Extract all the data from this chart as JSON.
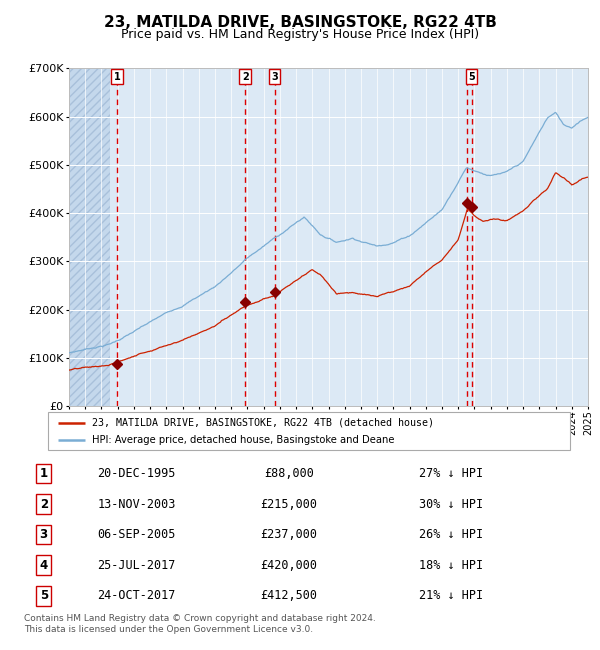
{
  "title": "23, MATILDA DRIVE, BASINGSTOKE, RG22 4TB",
  "subtitle": "Price paid vs. HM Land Registry's House Price Index (HPI)",
  "title_fontsize": 11,
  "subtitle_fontsize": 9,
  "background_color": "#ffffff",
  "plot_bg_color": "#dce9f5",
  "grid_color": "#ffffff",
  "ylim": [
    0,
    700000
  ],
  "yticks": [
    0,
    100000,
    200000,
    300000,
    400000,
    500000,
    600000,
    700000
  ],
  "ytick_labels": [
    "£0",
    "£100K",
    "£200K",
    "£300K",
    "£400K",
    "£500K",
    "£600K",
    "£700K"
  ],
  "x_start_year": 1993,
  "x_end_year": 2025,
  "hpi_color": "#7aadd4",
  "price_color": "#cc2200",
  "marker_color": "#880000",
  "vline_color": "#dd0000",
  "sale_box_color": "#cc0000",
  "legend_label_hpi": "HPI: Average price, detached house, Basingstoke and Deane",
  "legend_label_price": "23, MATILDA DRIVE, BASINGSTOKE, RG22 4TB (detached house)",
  "footer_text": "Contains HM Land Registry data © Crown copyright and database right 2024.\nThis data is licensed under the Open Government Licence v3.0.",
  "sales": [
    {
      "label": "1",
      "year": 1995.97,
      "price": 88000,
      "date_str": "20-DEC-1995"
    },
    {
      "label": "2",
      "year": 2003.87,
      "price": 215000,
      "date_str": "13-NOV-2003"
    },
    {
      "label": "3",
      "year": 2005.68,
      "price": 237000,
      "date_str": "06-SEP-2005"
    },
    {
      "label": "4",
      "year": 2017.56,
      "price": 420000,
      "date_str": "25-JUL-2017"
    },
    {
      "label": "5",
      "year": 2017.82,
      "price": 412500,
      "date_str": "24-OCT-2017"
    }
  ],
  "table_rows": [
    {
      "num": "1",
      "date": "20-DEC-1995",
      "price": "£88,000",
      "hpi": "27% ↓ HPI"
    },
    {
      "num": "2",
      "date": "13-NOV-2003",
      "price": "£215,000",
      "hpi": "30% ↓ HPI"
    },
    {
      "num": "3",
      "date": "06-SEP-2005",
      "price": "£237,000",
      "hpi": "26% ↓ HPI"
    },
    {
      "num": "4",
      "date": "25-JUL-2017",
      "price": "£420,000",
      "hpi": "18% ↓ HPI"
    },
    {
      "num": "5",
      "date": "24-OCT-2017",
      "price": "£412,500",
      "hpi": "21% ↓ HPI"
    }
  ],
  "hpi_curve_segments": [
    [
      1993.0,
      110000
    ],
    [
      1995.5,
      130000
    ],
    [
      1996.0,
      138000
    ],
    [
      2000.0,
      210000
    ],
    [
      2002.0,
      250000
    ],
    [
      2004.0,
      310000
    ],
    [
      2007.5,
      395000
    ],
    [
      2008.5,
      360000
    ],
    [
      2009.5,
      345000
    ],
    [
      2010.5,
      355000
    ],
    [
      2012.0,
      340000
    ],
    [
      2013.0,
      350000
    ],
    [
      2014.0,
      365000
    ],
    [
      2016.0,
      420000
    ],
    [
      2017.5,
      510000
    ],
    [
      2018.0,
      505000
    ],
    [
      2019.0,
      495000
    ],
    [
      2020.0,
      500000
    ],
    [
      2021.0,
      520000
    ],
    [
      2022.5,
      610000
    ],
    [
      2023.0,
      620000
    ],
    [
      2023.5,
      595000
    ],
    [
      2024.0,
      590000
    ],
    [
      2024.5,
      605000
    ],
    [
      2025.0,
      615000
    ]
  ],
  "price_curve_segments": [
    [
      1993.0,
      75000
    ],
    [
      1995.5,
      82000
    ],
    [
      1996.0,
      88000
    ],
    [
      2000.0,
      140000
    ],
    [
      2002.0,
      170000
    ],
    [
      2003.87,
      215000
    ],
    [
      2005.0,
      230000
    ],
    [
      2005.68,
      237000
    ],
    [
      2006.0,
      245000
    ],
    [
      2007.5,
      275000
    ],
    [
      2008.0,
      285000
    ],
    [
      2008.5,
      275000
    ],
    [
      2009.5,
      235000
    ],
    [
      2010.5,
      240000
    ],
    [
      2012.0,
      230000
    ],
    [
      2013.0,
      240000
    ],
    [
      2014.0,
      255000
    ],
    [
      2016.0,
      310000
    ],
    [
      2017.0,
      355000
    ],
    [
      2017.56,
      420000
    ],
    [
      2017.82,
      412500
    ],
    [
      2018.0,
      405000
    ],
    [
      2018.5,
      395000
    ],
    [
      2019.0,
      400000
    ],
    [
      2020.0,
      395000
    ],
    [
      2021.0,
      415000
    ],
    [
      2022.5,
      460000
    ],
    [
      2023.0,
      490000
    ],
    [
      2023.5,
      480000
    ],
    [
      2024.0,
      465000
    ],
    [
      2024.5,
      475000
    ],
    [
      2025.0,
      480000
    ]
  ]
}
